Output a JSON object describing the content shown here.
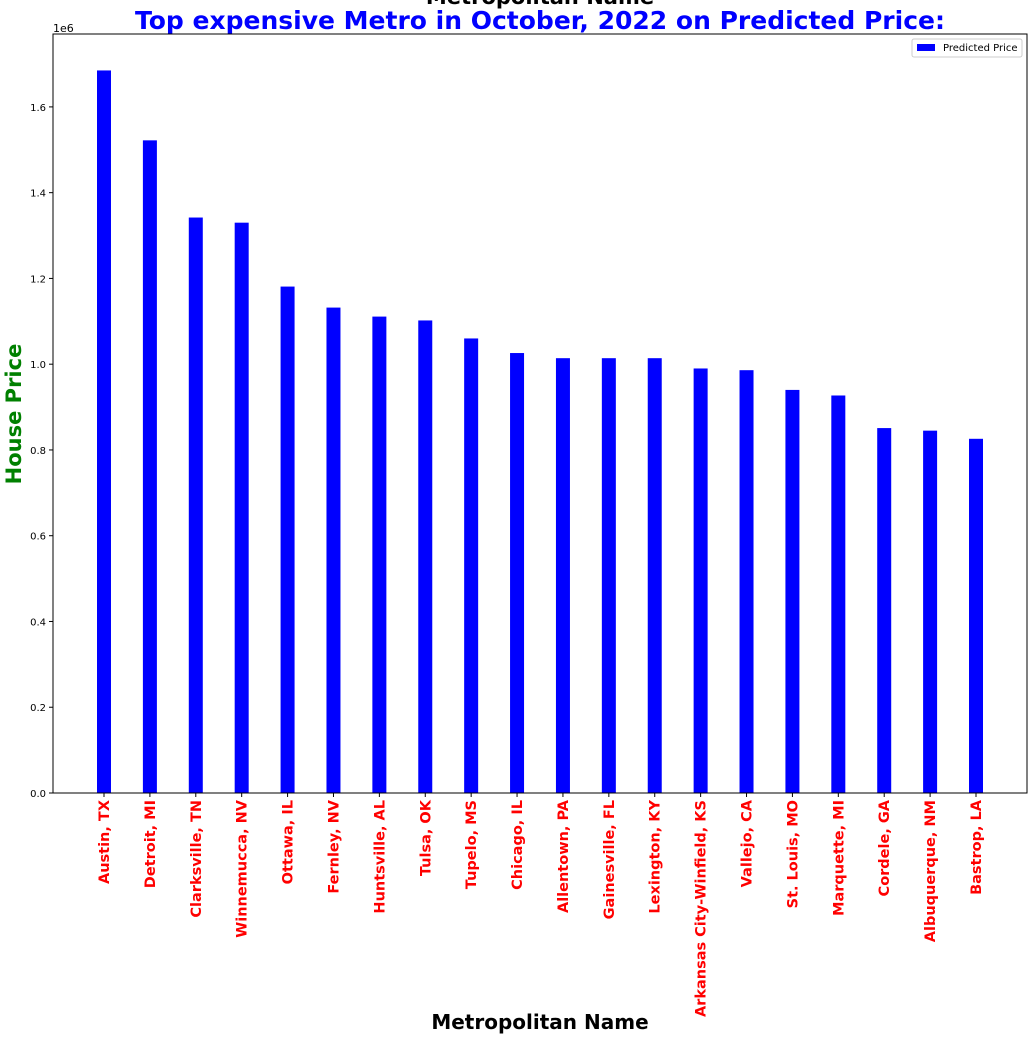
{
  "chart_data": {
    "type": "bar",
    "title": "Top expensive Metro in October, 2022 on Predicted Price:",
    "top_label": "Metropolitan Name",
    "xlabel": "Metropolitan Name",
    "ylabel": "House Price",
    "y_offset_label": "1e6",
    "categories": [
      "Austin, TX",
      "Detroit, MI",
      "Clarksville, TN",
      "Winnemucca, NV",
      "Ottawa, IL",
      "Fernley, NV",
      "Huntsville, AL",
      "Tulsa, OK",
      "Tupelo, MS",
      "Chicago, IL",
      "Allentown, PA",
      "Gainesville, FL",
      "Lexington, KY",
      "Arkansas City-Winfield, KS",
      "Vallejo, CA",
      "St. Louis, MO",
      "Marquette, MI",
      "Cordele, GA",
      "Albuquerque, NM",
      "Bastrop, LA"
    ],
    "series": [
      {
        "name": "Predicted Price",
        "color": "#0000ff",
        "values": [
          1685000,
          1522000,
          1342000,
          1330000,
          1181000,
          1132000,
          1111000,
          1102000,
          1060000,
          1026000,
          1014000,
          1014000,
          1014000,
          990000,
          986000,
          940000,
          927000,
          851000,
          845000,
          826000
        ]
      }
    ],
    "yticks": [
      0,
      200000,
      400000,
      600000,
      800000,
      1000000,
      1200000,
      1400000,
      1600000
    ],
    "ytick_labels": [
      "0.0",
      "0.2",
      "0.4",
      "0.6",
      "0.8",
      "1.0",
      "1.2",
      "1.4",
      "1.6"
    ],
    "ylim": [
      0,
      1770000
    ],
    "legend_position": "top-right",
    "grid": false,
    "colors": {
      "title": "#0000ff",
      "ylabel": "#008000",
      "xtick_labels": "#ff0000",
      "xlabel": "#000000",
      "bars": "#0000ff"
    }
  }
}
